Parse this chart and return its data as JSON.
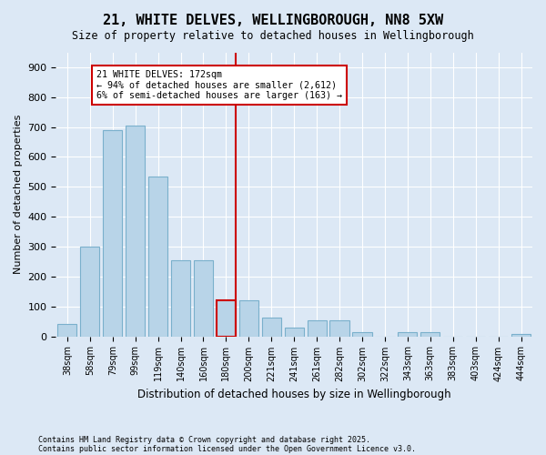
{
  "title": "21, WHITE DELVES, WELLINGBOROUGH, NN8 5XW",
  "subtitle": "Size of property relative to detached houses in Wellingborough",
  "xlabel": "Distribution of detached houses by size in Wellingborough",
  "ylabel": "Number of detached properties",
  "footnote1": "Contains HM Land Registry data © Crown copyright and database right 2025.",
  "footnote2": "Contains public sector information licensed under the Open Government Licence v3.0.",
  "categories": [
    "38sqm",
    "58sqm",
    "79sqm",
    "99sqm",
    "119sqm",
    "140sqm",
    "160sqm",
    "180sqm",
    "200sqm",
    "221sqm",
    "241sqm",
    "261sqm",
    "282sqm",
    "302sqm",
    "322sqm",
    "343sqm",
    "363sqm",
    "383sqm",
    "403sqm",
    "424sqm",
    "444sqm"
  ],
  "values": [
    42,
    300,
    690,
    705,
    535,
    255,
    255,
    120,
    120,
    62,
    30,
    55,
    55,
    15,
    0,
    15,
    15,
    0,
    0,
    0,
    8
  ],
  "bar_color": "#b8d4e8",
  "bar_edge_color": "#7ab0cc",
  "highlight_bar_index": 7,
  "highlight_bar_edge_color": "#cc0000",
  "vline_color": "#cc0000",
  "annotation_line1": "21 WHITE DELVES: 172sqm",
  "annotation_line2": "← 94% of detached houses are smaller (2,612)",
  "annotation_line3": "6% of semi-detached houses are larger (163) →",
  "annotation_box_facecolor": "#ffffff",
  "annotation_box_edgecolor": "#cc0000",
  "ylim": [
    0,
    950
  ],
  "background_color": "#dce8f5",
  "plot_bg_color": "#dce8f5"
}
